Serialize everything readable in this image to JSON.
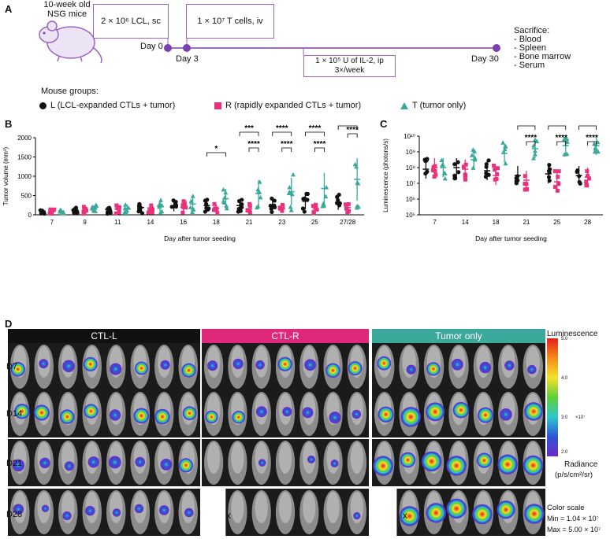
{
  "panelA": {
    "label": "A",
    "mice_text": "10-week old",
    "mice_text2": "NSG mice",
    "box1": "2 × 10⁶ LCL, sc",
    "box2": "1 × 10⁷ T cells, iv",
    "box3_line1": "1 × 10⁵ U of IL-2, ip",
    "box3_line2": "3×/week",
    "day0": "Day 0",
    "day3": "Day 3",
    "day30": "Day 30",
    "sacrifice_title": "Sacrifice:",
    "sacrifice_items": [
      "- Blood",
      "- Spleen",
      "- Bone marrow",
      "- Serum"
    ]
  },
  "groups": {
    "title": "Mouse groups:",
    "L": "L (LCL-expanded CTLs + tumor)",
    "R": "R (rapidly expanded CTLs + tumor)",
    "T": "T (tumor only)"
  },
  "colors": {
    "L": "#111111",
    "R": "#e8327b",
    "T": "#3aa89a",
    "accent": "#7b3fb0"
  },
  "chart_data": [
    {
      "panel": "B",
      "type": "scatter",
      "ylabel": "Tumor volume (mm³)",
      "xlabel": "Day after tumor seeding",
      "ylim": [
        0,
        2000
      ],
      "yticks": [
        "0",
        "500",
        "1000",
        "1500",
        "2000"
      ],
      "categories": [
        "7",
        "9",
        "11",
        "14",
        "16",
        "18",
        "21",
        "23",
        "25",
        "27/28"
      ],
      "series": [
        {
          "name": "L",
          "means": [
            95,
            130,
            140,
            190,
            230,
            240,
            240,
            260,
            350,
            320
          ]
        },
        {
          "name": "R",
          "means": [
            80,
            120,
            150,
            180,
            200,
            170,
            160,
            170,
            200,
            190
          ]
        },
        {
          "name": "T",
          "means": [
            100,
            150,
            170,
            230,
            280,
            420,
            560,
            600,
            680,
            920
          ]
        }
      ],
      "significance": [
        {
          "day": "18",
          "label": "*"
        },
        {
          "day": "21",
          "label": "***"
        },
        {
          "day": "21",
          "label": "****"
        },
        {
          "day": "23",
          "label": "****"
        },
        {
          "day": "23",
          "label": "****"
        },
        {
          "day": "25",
          "label": "****"
        },
        {
          "day": "25",
          "label": "****"
        },
        {
          "day": "27/28",
          "label": "****"
        },
        {
          "day": "27/28",
          "label": "****"
        }
      ]
    },
    {
      "panel": "C",
      "type": "scatter",
      "ylabel": "Luminescence (photons/s)",
      "xlabel": "Day after tumor seeding",
      "yscale": "log",
      "ylim": [
        100000,
        10000000000
      ],
      "yticks": [
        "10⁵",
        "10⁶",
        "10⁷",
        "10⁸",
        "10⁹",
        "10¹⁰"
      ],
      "categories": [
        "7",
        "14",
        "18",
        "21",
        "25",
        "28"
      ],
      "series": [
        {
          "name": "L",
          "log_means": [
            7.9,
            8.0,
            7.8,
            7.5,
            7.6,
            7.5
          ]
        },
        {
          "name": "R",
          "log_means": [
            8.0,
            7.9,
            7.5,
            7.2,
            7.1,
            7.4
          ]
        },
        {
          "name": "T",
          "log_means": [
            8.0,
            8.5,
            8.9,
            9.2,
            9.4,
            9.4
          ]
        }
      ],
      "significance": [
        {
          "day": "21",
          "label": "****"
        },
        {
          "day": "21",
          "label": "****"
        },
        {
          "day": "25",
          "label": "****"
        },
        {
          "day": "25",
          "label": "****"
        },
        {
          "day": "28",
          "label": "****"
        },
        {
          "day": "28",
          "label": "****"
        }
      ]
    }
  ],
  "panelB": {
    "label": "B"
  },
  "panelC": {
    "label": "C"
  },
  "panelD": {
    "label": "D",
    "headers": [
      "CTL-L",
      "CTL-R",
      "Tumor only"
    ],
    "rows": [
      "D7",
      "D14",
      "D21",
      "D28"
    ],
    "x_mark": "x",
    "scale_title": "Luminescence",
    "scale_ticks": [
      "5.0",
      "4.0",
      "3.0",
      "2.0"
    ],
    "scale_exp": "×10⁷",
    "radiance": "Radiance",
    "radiance_unit": "(p/s/cm²/sr)",
    "color_scale": "Color scale",
    "min": "Min = 1.04 × 10⁷",
    "max": "Max = 5.00 × 10⁷"
  }
}
